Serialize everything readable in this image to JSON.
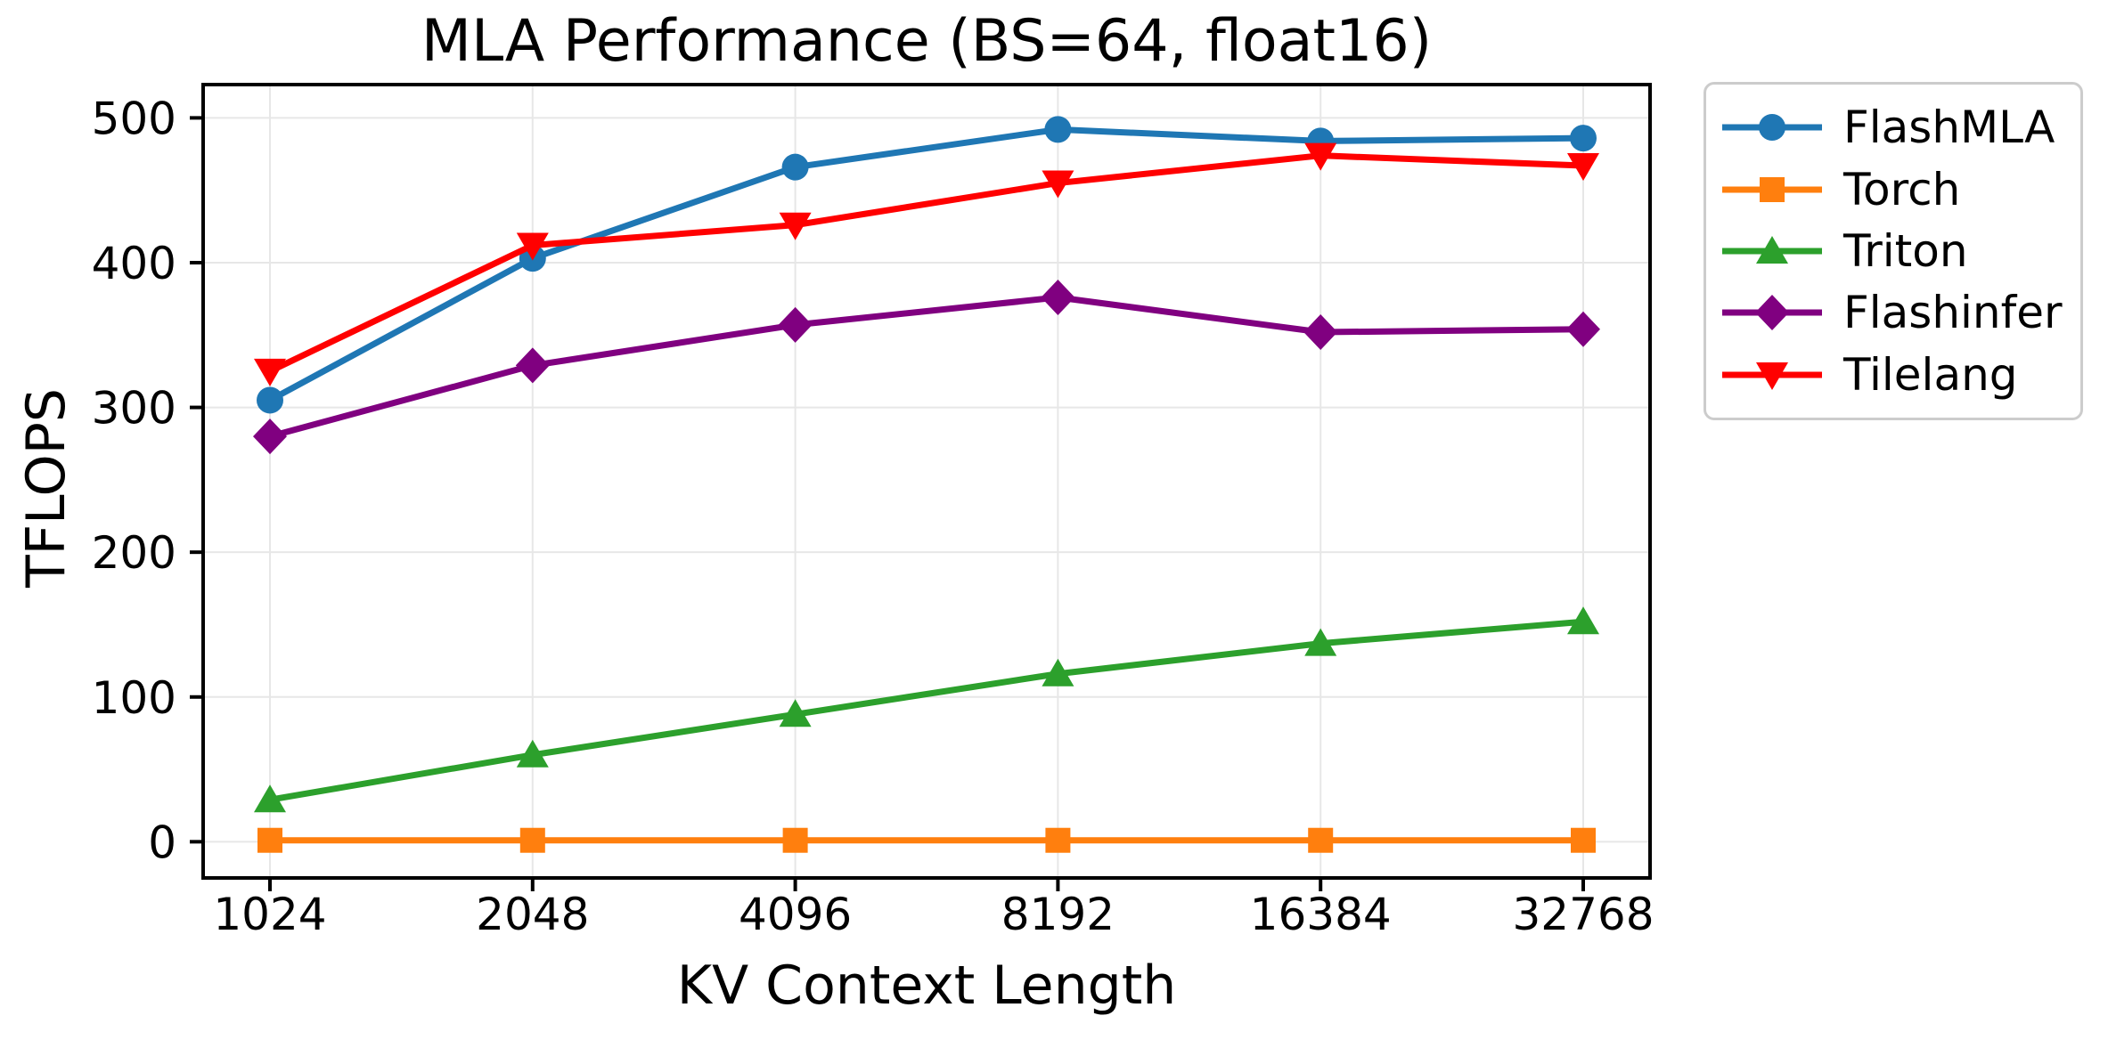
{
  "chart_data": {
    "type": "line",
    "title": "MLA Performance (BS=64, float16)",
    "xlabel": "KV Context Length",
    "ylabel": "TFLOPS",
    "categories": [
      "1024",
      "2048",
      "4096",
      "8192",
      "16384",
      "32768"
    ],
    "yticks": [
      0,
      100,
      200,
      300,
      400,
      500
    ],
    "ylim": [
      -25,
      523
    ],
    "grid": true,
    "legend_position": "outside-right",
    "series": [
      {
        "name": "FlashMLA",
        "color": "#1f77b4",
        "marker": "circle",
        "values": [
          305,
          403,
          466,
          492,
          484,
          486
        ]
      },
      {
        "name": "Torch",
        "color": "#ff7f0e",
        "marker": "square",
        "values": [
          1,
          1,
          1,
          1,
          1,
          1
        ]
      },
      {
        "name": "Triton",
        "color": "#2ca02c",
        "marker": "triangle-up",
        "values": [
          29,
          60,
          88,
          116,
          137,
          152
        ]
      },
      {
        "name": "Flashinfer",
        "color": "#800080",
        "marker": "diamond",
        "values": [
          280,
          329,
          357,
          376,
          352,
          354
        ]
      },
      {
        "name": "Tilelang",
        "color": "#ff0000",
        "marker": "triangle-down",
        "values": [
          325,
          412,
          426,
          455,
          474,
          467
        ]
      }
    ],
    "style": {
      "background": "#ffffff",
      "text_color": "#000000",
      "grid_color": "#e7e7e7",
      "spine_color": "#000000",
      "legend_border_color": "#cccccc"
    }
  }
}
